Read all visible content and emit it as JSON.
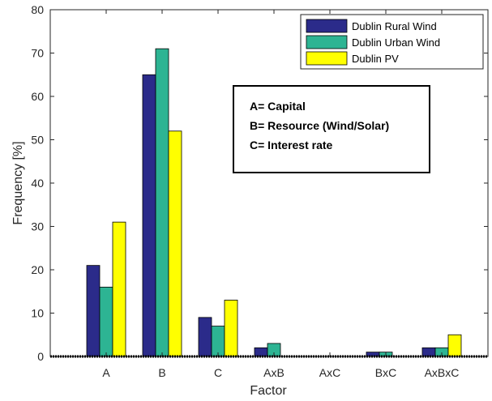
{
  "chart_data": {
    "type": "bar",
    "categories": [
      "A",
      "B",
      "C",
      "AxB",
      "AxC",
      "BxC",
      "AxBxC"
    ],
    "series": [
      {
        "name": "Dublin Rural Wind",
        "color": "#2b2b8a",
        "values": [
          21,
          65,
          9,
          2,
          0,
          1,
          2
        ]
      },
      {
        "name": "Dublin Urban Wind",
        "color": "#2db493",
        "values": [
          16,
          71,
          7,
          3,
          0,
          1,
          2
        ]
      },
      {
        "name": "Dublin PV",
        "color": "#ffff00",
        "values": [
          31,
          52,
          13,
          0,
          0,
          0,
          5
        ]
      }
    ],
    "xlabel": "Factor",
    "ylabel": "Frequency [%]",
    "ylim": [
      0,
      80
    ],
    "yticks": [
      "0",
      "10",
      "20",
      "30",
      "40",
      "50",
      "60",
      "70",
      "80"
    ],
    "legend_position": "top-right",
    "grid": false,
    "annotation_lines": [
      "A= Capital",
      "B= Resource (Wind/Solar)",
      "C= Interest rate"
    ]
  }
}
